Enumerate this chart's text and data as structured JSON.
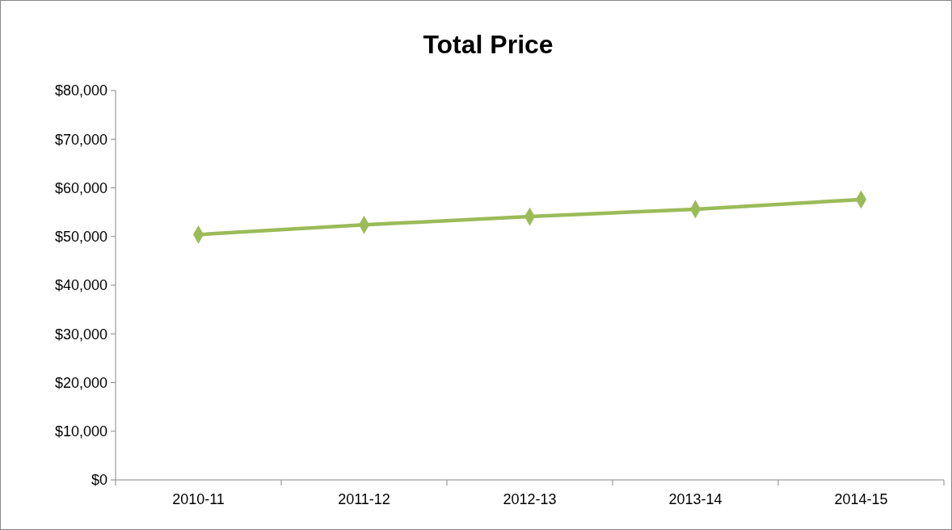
{
  "chart_data": {
    "type": "line",
    "title": "Total Price",
    "categories": [
      "2010-11",
      "2011-12",
      "2012-13",
      "2013-14",
      "2014-15"
    ],
    "series": [
      {
        "color": "#9bbb59",
        "values": [
          50400,
          52400,
          54100,
          55600,
          57600
        ]
      }
    ],
    "ylim": [
      0,
      80000
    ],
    "yticks": [
      {
        "value": 0,
        "label": "$0"
      },
      {
        "value": 10000,
        "label": "$10,000"
      },
      {
        "value": 20000,
        "label": "$20,000"
      },
      {
        "value": 30000,
        "label": "$30,000"
      },
      {
        "value": 40000,
        "label": "$40,000"
      },
      {
        "value": 50000,
        "label": "$50,000"
      },
      {
        "value": 60000,
        "label": "$60,000"
      },
      {
        "value": 70000,
        "label": "$70,000"
      },
      {
        "value": 80000,
        "label": "$80,000"
      }
    ],
    "marker": "diamond",
    "line_style": "solid"
  }
}
